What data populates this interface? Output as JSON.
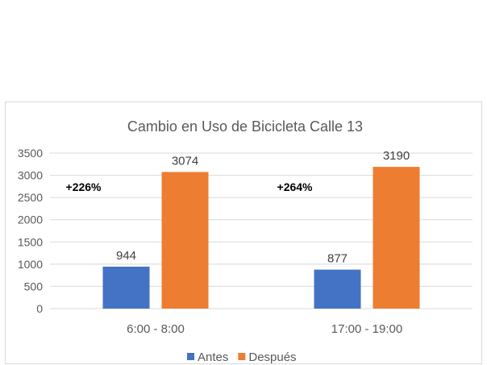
{
  "chart_data": {
    "type": "bar",
    "title": "Cambio en Uso de Bicicleta Calle 13",
    "categories": [
      "6:00 - 8:00",
      "17:00 - 19:00"
    ],
    "series": [
      {
        "name": "Antes",
        "values": [
          944,
          877
        ],
        "color": "#4472c4"
      },
      {
        "name": "Después",
        "values": [
          3074,
          3190
        ],
        "color": "#ed7d31"
      }
    ],
    "annotations": [
      "+226%",
      "+264%"
    ],
    "ylim": [
      0,
      3500
    ],
    "yticks": [
      0,
      500,
      1000,
      1500,
      2000,
      2500,
      3000,
      3500
    ],
    "grid": true,
    "legend": "bottom"
  }
}
